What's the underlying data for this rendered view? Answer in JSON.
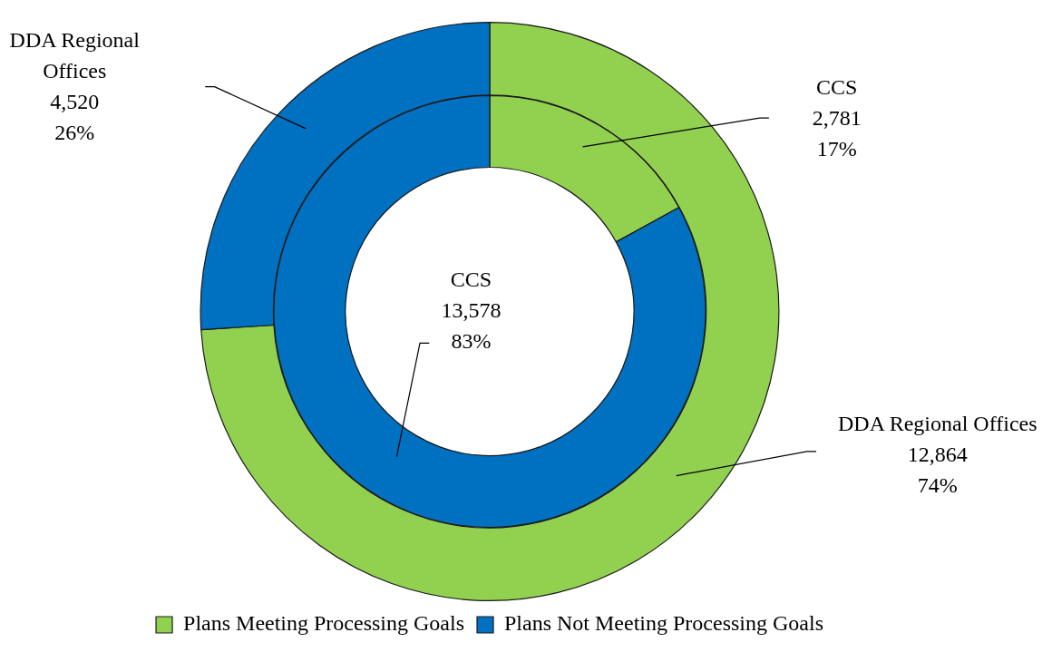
{
  "chart_data": [
    {
      "type": "donut",
      "categories": [
        "Plans Meeting Processing Goals",
        "Plans Not Meeting Processing Goals"
      ],
      "series": [
        {
          "name": "DDA Regional Offices",
          "values": [
            12864,
            4520
          ],
          "colors": [
            "#92d050",
            "#0070c0"
          ],
          "value_labels": [
            "12,864\n74%",
            "4,520\n26%"
          ]
        }
      ],
      "legend": "bottom"
    },
    {
      "type": "donut",
      "categories": [
        null,
        null
      ],
      "series": [
        {
          "name": "CCS",
          "values": [
            2781,
            13578
          ],
          "colors": [
            "#92d050",
            "#0070c0"
          ],
          "value_labels": [
            "2,781\n17%",
            "13,578\n83%"
          ]
        }
      ]
    }
  ]
}
